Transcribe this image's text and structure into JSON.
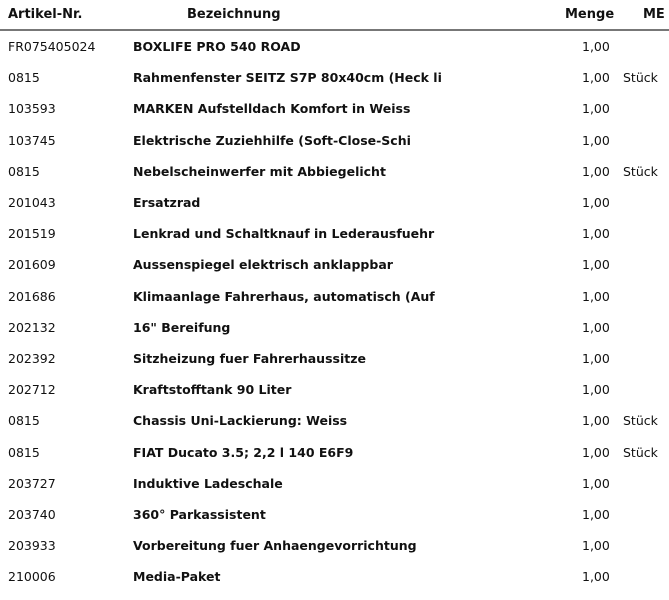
{
  "header": {
    "artikel_nr": "Artikel-Nr.",
    "bezeichnung": "Bezeichnung",
    "menge": "Menge",
    "me": "ME"
  },
  "rows": [
    {
      "nr": "FR075405024",
      "bez": "BOXLIFE PRO 540 ROAD",
      "menge": "1,00",
      "me": ""
    },
    {
      "nr": "0815",
      "bez": "Rahmenfenster SEITZ S7P 80x40cm (Heck li",
      "menge": "1,00",
      "me": "Stück"
    },
    {
      "nr": "103593",
      "bez": "MARKEN Aufstelldach Komfort in Weiss",
      "menge": "1,00",
      "me": ""
    },
    {
      "nr": "103745",
      "bez": "Elektrische Zuziehhilfe (Soft-Close-Schi",
      "menge": "1,00",
      "me": ""
    },
    {
      "nr": "0815",
      "bez": "Nebelscheinwerfer mit Abbiegelicht",
      "menge": "1,00",
      "me": "Stück"
    },
    {
      "nr": "201043",
      "bez": "Ersatzrad",
      "menge": "1,00",
      "me": ""
    },
    {
      "nr": "201519",
      "bez": "Lenkrad und Schaltknauf in Lederausfuehr",
      "menge": "1,00",
      "me": ""
    },
    {
      "nr": "201609",
      "bez": "Aussenspiegel elektrisch anklappbar",
      "menge": "1,00",
      "me": ""
    },
    {
      "nr": "201686",
      "bez": "Klimaanlage Fahrerhaus, automatisch (Auf",
      "menge": "1,00",
      "me": ""
    },
    {
      "nr": "202132",
      "bez": "16\" Bereifung",
      "menge": "1,00",
      "me": ""
    },
    {
      "nr": "202392",
      "bez": "Sitzheizung fuer Fahrerhaussitze",
      "menge": "1,00",
      "me": ""
    },
    {
      "nr": "202712",
      "bez": "Kraftstofftank 90 Liter",
      "menge": "1,00",
      "me": ""
    },
    {
      "nr": "0815",
      "bez": "Chassis Uni-Lackierung: Weiss",
      "menge": "1,00",
      "me": "Stück"
    },
    {
      "nr": "0815",
      "bez": "FIAT Ducato 3.5; 2,2 l 140 E6F9",
      "menge": "1,00",
      "me": "Stück"
    },
    {
      "nr": "203727",
      "bez": "Induktive Ladeschale",
      "menge": "1,00",
      "me": ""
    },
    {
      "nr": "203740",
      "bez": "360° Parkassistent",
      "menge": "1,00",
      "me": ""
    },
    {
      "nr": "203933",
      "bez": "Vorbereitung fuer Anhaengevorrichtung",
      "menge": "1,00",
      "me": ""
    },
    {
      "nr": "210006",
      "bez": "Media-Paket",
      "menge": "1,00",
      "me": ""
    }
  ]
}
